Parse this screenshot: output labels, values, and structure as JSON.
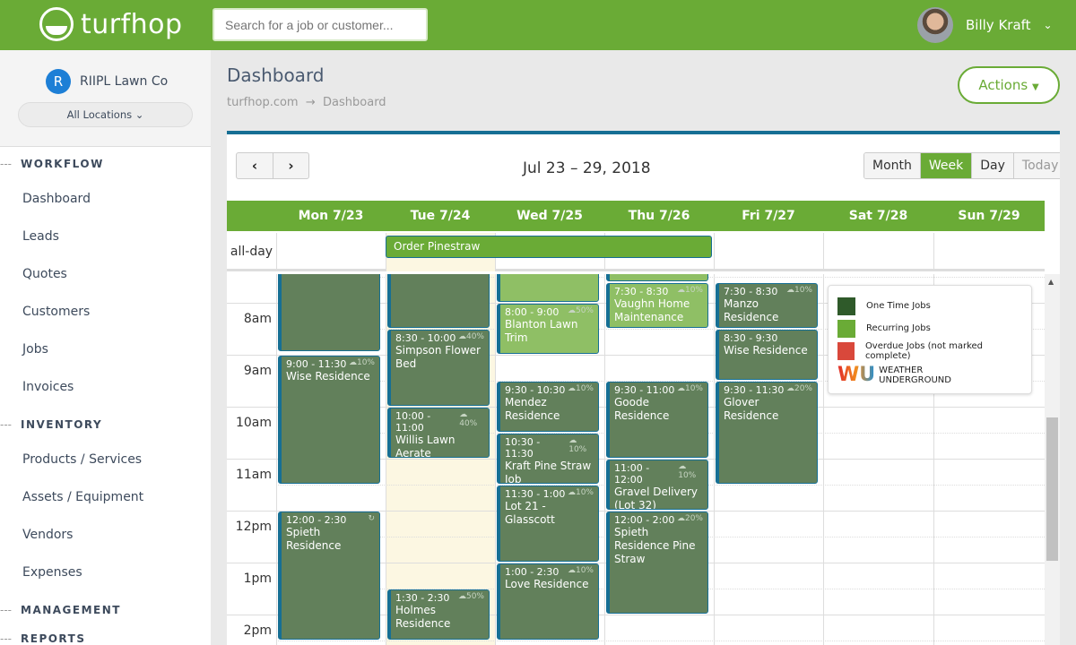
{
  "header": {
    "logo_text": "turfhop",
    "search_placeholder": "Search for a job or customer...",
    "user_name": "Billy Kraft"
  },
  "sidebar": {
    "org_initial": "R",
    "org_name": "RIIPL Lawn Co",
    "location": "All Locations",
    "sections": [
      {
        "title": "WORKFLOW",
        "items": [
          "Dashboard",
          "Leads",
          "Quotes",
          "Customers",
          "Jobs",
          "Invoices"
        ]
      },
      {
        "title": "INVENTORY",
        "items": [
          "Products / Services",
          "Assets / Equipment",
          "Vendors",
          "Expenses"
        ]
      },
      {
        "title": "MANAGEMENT",
        "items": []
      },
      {
        "title": "REPORTS",
        "items": []
      }
    ]
  },
  "page": {
    "title": "Dashboard",
    "breadcrumb": [
      "turfhop.com",
      "Dashboard"
    ],
    "actions_label": "Actions"
  },
  "calendar": {
    "range": "Jul 23 – 29, 2018",
    "views": [
      "Month",
      "Week",
      "Day",
      "Today"
    ],
    "active_view": "Week",
    "days": [
      "Mon 7/23",
      "Tue 7/24",
      "Wed 7/25",
      "Thu 7/26",
      "Fri 7/27",
      "Sat 7/28",
      "Sun 7/29"
    ],
    "today_index": 1,
    "allday_label": "all-day",
    "allday_events": [
      {
        "title": "Order Pinestraw",
        "start_day": 1,
        "end_day": 3
      }
    ],
    "hours": [
      "8am",
      "9am",
      "10am",
      "11am",
      "12pm",
      "1pm",
      "2pm"
    ],
    "events": [
      {
        "day": 0,
        "start": 6.5,
        "end": 8.95,
        "type": "one",
        "time": "",
        "name": "",
        "weather": ""
      },
      {
        "day": 1,
        "start": 6.5,
        "end": 8.5,
        "type": "one",
        "time": "",
        "name": "",
        "weather": ""
      },
      {
        "day": 2,
        "start": 6.5,
        "end": 8.0,
        "type": "rec",
        "time": "",
        "name": "",
        "weather": ""
      },
      {
        "day": 3,
        "start": 6.5,
        "end": 7.6,
        "type": "rec",
        "time": "",
        "name": "",
        "weather": ""
      },
      {
        "day": 0,
        "start": 9,
        "end": 11.5,
        "type": "one",
        "time": "9:00 - 11:30",
        "name": "Wise Residence",
        "weather": "10%"
      },
      {
        "day": 0,
        "start": 12,
        "end": 14.5,
        "type": "one",
        "time": "12:00 - 2:30",
        "name": "Spieth Residence",
        "weather": "",
        "recurring_icon": true
      },
      {
        "day": 1,
        "start": 8.5,
        "end": 10,
        "type": "one",
        "time": "8:30 - 10:00",
        "name": "Simpson Flower Bed",
        "weather": "40%"
      },
      {
        "day": 1,
        "start": 10,
        "end": 11,
        "type": "one",
        "time": "10:00 - 11:00",
        "name": "Willis Lawn Aerate",
        "weather": "40%"
      },
      {
        "day": 1,
        "start": 13.5,
        "end": 14.5,
        "type": "one",
        "time": "1:30 - 2:30",
        "name": "Holmes Residence",
        "weather": "50%"
      },
      {
        "day": 2,
        "start": 8,
        "end": 9,
        "type": "rec",
        "time": "8:00 - 9:00",
        "name": "Blanton Lawn Trim",
        "weather": "50%"
      },
      {
        "day": 2,
        "start": 9.5,
        "end": 10.5,
        "type": "one",
        "time": "9:30 - 10:30",
        "name": "Mendez Residence",
        "weather": "10%"
      },
      {
        "day": 2,
        "start": 10.5,
        "end": 11.5,
        "type": "one",
        "time": "10:30 - 11:30",
        "name": "Kraft Pine Straw Job",
        "weather": "10%"
      },
      {
        "day": 2,
        "start": 11.5,
        "end": 13,
        "type": "one",
        "time": "11:30 - 1:00",
        "name": "Lot 21 - Glasscott",
        "weather": "10%"
      },
      {
        "day": 2,
        "start": 13,
        "end": 14.5,
        "type": "one",
        "time": "1:00 - 2:30",
        "name": "Love Residence",
        "weather": "10%"
      },
      {
        "day": 3,
        "start": 7.6,
        "end": 8.5,
        "type": "rec",
        "time": "7:30 - 8:30",
        "name": "Vaughn Home Maintenance",
        "weather": "10%"
      },
      {
        "day": 3,
        "start": 9.5,
        "end": 11,
        "type": "one",
        "time": "9:30 - 11:00",
        "name": "Goode Residence",
        "weather": "10%"
      },
      {
        "day": 3,
        "start": 11,
        "end": 12,
        "type": "one",
        "time": "11:00 - 12:00",
        "name": "Gravel Delivery (Lot 32)",
        "weather": "10%"
      },
      {
        "day": 3,
        "start": 12,
        "end": 14,
        "type": "one",
        "time": "12:00 - 2:00",
        "name": "Spieth Residence Pine Straw",
        "weather": "20%"
      },
      {
        "day": 4,
        "start": 7.6,
        "end": 8.5,
        "type": "one",
        "time": "7:30 - 8:30",
        "name": "Manzo Residence",
        "weather": "10%"
      },
      {
        "day": 4,
        "start": 8.5,
        "end": 9.5,
        "type": "one",
        "time": "8:30 - 9:30",
        "name": "Wise Residence",
        "weather": ""
      },
      {
        "day": 4,
        "start": 9.5,
        "end": 11.5,
        "type": "one",
        "time": "9:30 - 11:30",
        "name": "Glover Residence",
        "weather": "20%"
      }
    ],
    "legend": [
      {
        "label": "One Time Jobs",
        "color": "#2f5a2a"
      },
      {
        "label": "Recurring Jobs",
        "color": "#6aab36"
      },
      {
        "label": "Overdue Jobs (not marked complete)",
        "color": "#d9483b"
      }
    ],
    "legend_brand": {
      "mark": "wu",
      "text": "WEATHER UNDERGROUND"
    }
  },
  "colors": {
    "brand": "#6aab36",
    "accent": "#166f94",
    "one_time_event": "#62805b",
    "recurring_event": "#8fbf65"
  }
}
